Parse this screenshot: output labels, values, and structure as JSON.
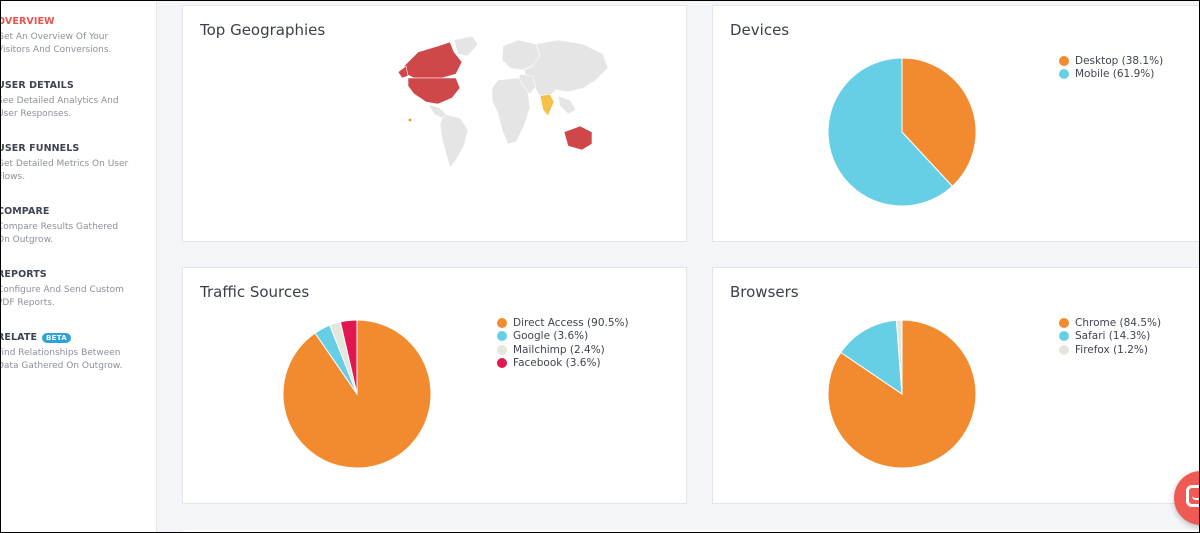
{
  "sidebar": {
    "items": [
      {
        "title": "OVERVIEW",
        "desc": [
          "Get An Overview Of Your",
          "Visitors And Conversions."
        ],
        "active": true
      },
      {
        "title": "USER DETAILS",
        "desc": [
          "See Detailed Analytics And",
          "User Responses."
        ]
      },
      {
        "title": "USER FUNNELS",
        "desc": [
          "Get Detailed Metrics On User",
          "Flows."
        ]
      },
      {
        "title": "COMPARE",
        "desc": [
          "Compare Results Gathered",
          "On Outgrow."
        ]
      },
      {
        "title": "REPORTS",
        "desc": [
          "Configure And Send Custom",
          "PDF Reports."
        ]
      },
      {
        "title": "RELATE",
        "badge": "BETA",
        "desc": [
          "Find Relationships Between",
          "Data Gathered On Outgrow."
        ]
      }
    ]
  },
  "cards": {
    "geo": {
      "title": "Top Geographies"
    },
    "devices": {
      "title": "Devices"
    },
    "traffic": {
      "title": "Traffic Sources"
    },
    "browsers": {
      "title": "Browsers"
    }
  },
  "colors": {
    "orange": "#f28a30",
    "blue": "#66cfe6",
    "grey": "#e3e7dc",
    "red": "#e2174f",
    "map_highlight": "#d0474a",
    "map_base": "#e5e5e5",
    "map_india": "#f6c148"
  },
  "icons": {
    "chat": "chat-icon"
  },
  "chart_data": [
    {
      "type": "pie",
      "title": "Devices",
      "series": [
        {
          "name": "Desktop",
          "value": 38.1
        },
        {
          "name": "Mobile",
          "value": 61.9
        }
      ],
      "labels": [
        "Desktop (38.1%)",
        "Mobile (61.9%)"
      ],
      "colors": [
        "#f28a30",
        "#66cfe6"
      ],
      "legend": "top-right"
    },
    {
      "type": "pie",
      "title": "Traffic Sources",
      "series": [
        {
          "name": "Direct Access",
          "value": 90.5
        },
        {
          "name": "Google",
          "value": 3.6
        },
        {
          "name": "Mailchimp",
          "value": 2.4
        },
        {
          "name": "Facebook",
          "value": 3.6
        }
      ],
      "labels": [
        "Direct Access (90.5%)",
        "Google (3.6%)",
        "Mailchimp (2.4%)",
        "Facebook (3.6%)"
      ],
      "colors": [
        "#f28a30",
        "#66cfe6",
        "#e3e7dc",
        "#e2174f"
      ],
      "legend": "top-right"
    },
    {
      "type": "pie",
      "title": "Browsers",
      "series": [
        {
          "name": "Chrome",
          "value": 84.5
        },
        {
          "name": "Safari",
          "value": 14.3
        },
        {
          "name": "Firefox",
          "value": 1.2
        }
      ],
      "labels": [
        "Chrome (84.5%)",
        "Safari (14.3%)",
        "Firefox (1.2%)"
      ],
      "colors": [
        "#f28a30",
        "#66cfe6",
        "#e3e7dc"
      ],
      "legend": "top-right"
    }
  ]
}
